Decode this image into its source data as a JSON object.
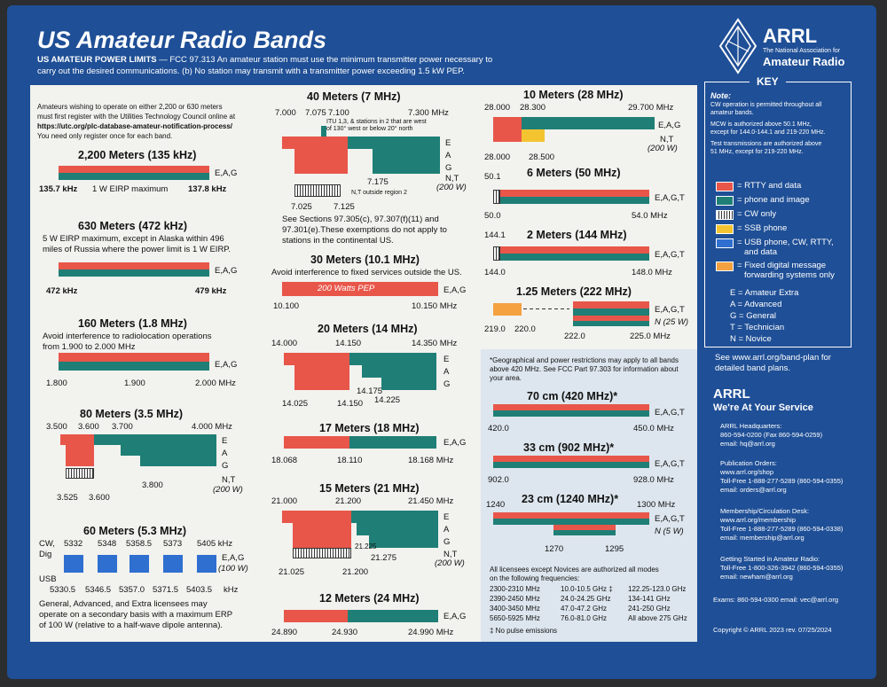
{
  "header": {
    "title": "US Amateur Radio Bands",
    "power_heading": "US AMATEUR POWER LIMITS",
    "power_line1": " — FCC 97.313   An amateur station must use the minimum transmitter power necessary to",
    "power_line2": "carry out the desired communications.  (b) No station may transmit with a transmitter power exceeding 1.5 kW PEP.",
    "logo_text": "ARRL",
    "logo_sub1": "The National Association for",
    "logo_sub2": "Amateur Radio"
  },
  "colors": {
    "background": "#1f4f96",
    "red": "#e8564a",
    "teal": "#1f7f76",
    "yellow": "#f4c430",
    "blue": "#2f6fd0",
    "orange": "#f4a140"
  },
  "intro": [
    "Amateurs wishing to operate on either 2,200 or 630 meters",
    "must first register with the Utilities Technology Council online at",
    "https://utc.org/plc-database-amateur-notification-process/",
    "You need only register once for each band."
  ],
  "b2200": {
    "title": "2,200 Meters (135 kHz)",
    "priv": "E,A,G",
    "lo": "135.7 kHz",
    "note": "1 W EIRP maximum",
    "hi": "137.8 kHz"
  },
  "b630": {
    "title": "630 Meters (472 kHz)",
    "n1": "5 W EIRP maximum, except in Alaska within 496",
    "n2": "miles of Russia where the power limit is 1 W EIRP.",
    "priv": "E,A,G",
    "lo": "472 kHz",
    "hi": "479 kHz"
  },
  "b160": {
    "title": "160 Meters (1.8 MHz)",
    "n1": "Avoid interference to radiolocation operations",
    "n2": "from 1.900 to 2.000 MHz",
    "priv": "E,A,G",
    "f1": "1.800",
    "f2": "1.900",
    "f3": "2.000  MHz"
  },
  "b80": {
    "title": "80 Meters (3.5 MHz)",
    "f1": "3.500",
    "f2": "3.600",
    "f3": "3.700",
    "f4": "4.000 MHz",
    "f5": "3.525",
    "f6": "3.600",
    "f7": "3.800",
    "e": "E",
    "a": "A",
    "g": "G",
    "nt": "N,T",
    "pw": "(200 W)"
  },
  "b60": {
    "title": "60 Meters (5.3 MHz)",
    "cw": "CW,",
    "dig": "Dig",
    "usb": "USB",
    "top": [
      "5332",
      "5348",
      "5358.5",
      "5373",
      "5405 kHz"
    ],
    "bot": [
      "5330.5",
      "5346.5",
      "5357.0",
      "5371.5",
      "5403.5",
      "kHz"
    ],
    "priv": "E,A,G",
    "pw": "(100 W)",
    "n1": "General, Advanced, and Extra licensees may",
    "n2": "operate on a secondary basis with a maximum ERP",
    "n3": "of 100 W (relative to a half-wave dipole antenna)."
  },
  "b40": {
    "title": "40 Meters (7 MHz)",
    "f1": "7.000",
    "f2": "7.075",
    "f3": "7.100",
    "f4": "7.300  MHz",
    "itu1": "ITU 1,3, & stations in 2 that are west",
    "itu2": "of 130° west or below 20° north",
    "e": "E",
    "a": "A",
    "g": "G",
    "nt": "N,T",
    "pw": "(200 W)",
    "f5": "7.175",
    "f6": "7.025",
    "f7": "7.125",
    "outside": "N,T outside region 2",
    "n1": "See Sections 97.305(c), 97.307(f)(11) and",
    "n2": "97.301(e).These exemptions do not apply to",
    "n3": "stations in the continental US."
  },
  "b30": {
    "title": "30 Meters (10.1 MHz)",
    "n1": "Avoid interference to fixed services outside the US.",
    "label": "200 Watts PEP",
    "priv": "E,A,G",
    "lo": "10.100",
    "hi": "10.150 MHz"
  },
  "b20": {
    "title": "20 Meters (14 MHz)",
    "f1": "14.000",
    "f2": "14.150",
    "f3": "14.350 MHz",
    "f4": "14.175",
    "f5": "14.025",
    "f6": "14.150",
    "f7": "14.225",
    "e": "E",
    "a": "A",
    "g": "G"
  },
  "b17": {
    "title": "17 Meters (18 MHz)",
    "priv": "E,A,G",
    "lo": "18.068",
    "mid": "18.110",
    "hi": "18.168 MHz"
  },
  "b15": {
    "title": "15 Meters (21 MHz)",
    "f1": "21.000",
    "f2": "21.200",
    "f3": "21.450 MHz",
    "f4": "21.225",
    "f5": "21.275",
    "f6": "21.025",
    "f7": "21.200",
    "e": "E",
    "a": "A",
    "g": "G",
    "nt": "N,T",
    "pw": "(200 W)"
  },
  "b12": {
    "title": "12 Meters (24 MHz)",
    "priv": "E,A,G",
    "lo": "24.890",
    "mid": "24.930",
    "hi": "24.990 MHz"
  },
  "b10": {
    "title": "10 Meters (28 MHz)",
    "f1": "28.000",
    "f2": "28.300",
    "f3": "29.700 MHz",
    "priv": "E,A,G",
    "nt": "N,T",
    "pw": "(200 W)",
    "f4": "28.000",
    "f5": "28.500"
  },
  "b6": {
    "title": "6 Meters (50 MHz)",
    "f1": "50.1",
    "priv": "E,A,G,T",
    "lo": "50.0",
    "hi": "54.0  MHz"
  },
  "b2": {
    "title": "2 Meters (144 MHz)",
    "f1": "144.1",
    "priv": "E,A,G,T",
    "lo": "144.0",
    "hi": "148.0  MHz"
  },
  "b125": {
    "title": "1.25 Meters (222 MHz)",
    "priv": "E,A,G,T",
    "npw": "N (25 W)",
    "f1": "219.0",
    "f2": "220.0",
    "f3": "222.0",
    "f4": "225.0  MHz"
  },
  "uhf": {
    "n1": "*Geographical and power restrictions may apply to all bands",
    "n2": "above 420 MHz. See FCC Part 97.303 for information about",
    "n3": "your area."
  },
  "b70": {
    "title": "70 cm (420 MHz)*",
    "priv": "E,A,G,T",
    "lo": "420.0",
    "hi": "450.0  MHz"
  },
  "b33": {
    "title": "33 cm (902 MHz)*",
    "priv": "E,A,G,T",
    "lo": "902.0",
    "hi": "928.0  MHz"
  },
  "b23": {
    "title": "23 cm (1240 MHz)*",
    "f1": "1240",
    "f2": "1300 MHz",
    "priv": "E,A,G,T",
    "npw": "N (5 W)",
    "f3": "1270",
    "f4": "1295"
  },
  "micro": {
    "n1": "All licensees except Novices are authorized all modes",
    "n2": "on the following frequencies:",
    "c1": [
      "2300-2310 MHz",
      "2390-2450 MHz",
      "3400-3450 MHz",
      "5650-5925 MHz"
    ],
    "c2": [
      "10.0-10.5 GHz ‡",
      "24.0-24.25 GHz",
      "47.0-47.2 GHz",
      "76.0-81.0 GHz"
    ],
    "c3": [
      "122.25-123.0 GHz",
      "134-141 GHz",
      "241-250 GHz",
      "All above 275 GHz"
    ],
    "foot": "‡ No pulse emissions"
  },
  "key": {
    "title": "KEY",
    "note": "Note:",
    "n1": [
      "CW operation is permitted throughout all",
      "amateur bands."
    ],
    "n2": [
      "MCW is authorized above 50.1 MHz,",
      "except for 144.0-144.1 and 219-220 MHz."
    ],
    "n3": [
      "Test transmissions are authorized above",
      "51 MHz, except for 219-220 MHz."
    ],
    "items": [
      "= RTTY and data",
      "= phone and image",
      "= CW only",
      "= SSB phone",
      "= USB phone, CW, RTTY,",
      "= Fixed digital message"
    ],
    "items2": [
      "and data",
      "forwarding systems only"
    ],
    "lic": [
      "E = Amateur Extra",
      "A = Advanced",
      "G = General",
      "T = Technician",
      "N = Novice"
    ],
    "see1": "See www.arrl.org/band-plan for",
    "see2": "detailed band plans."
  },
  "service": {
    "title": "ARRL",
    "sub": "We're At Your Service",
    "hq1": "ARRL Headquarters:",
    "hq2": "860-594-0200  (Fax 860-594-0259)",
    "hq3": "email:  hq@arrl.org",
    "po1": "Publication Orders:",
    "po2": "www.arrl.org/shop",
    "po3": "Toll-Free 1-888-277-5289 (860-594-0355)",
    "po4": "email:  orders@arrl.org",
    "mc1": "Membership/Circulation Desk:",
    "mc2": "www.arrl.org/membership",
    "mc3": "Toll-Free 1-888-277-5289 (860-594-0338)",
    "mc4": "email:  membership@arrl.org",
    "gs1": "Getting Started in Amateur Radio:",
    "gs2": "Toll-Free 1-800-326-3942 (860-594-0355)",
    "gs3": "email:  newham@arrl.org",
    "ex": "Exams:  860-594-0300  email: vec@arrl.org",
    "copy": "Copyright © ARRL 2023   rev. 07/25/2024"
  }
}
